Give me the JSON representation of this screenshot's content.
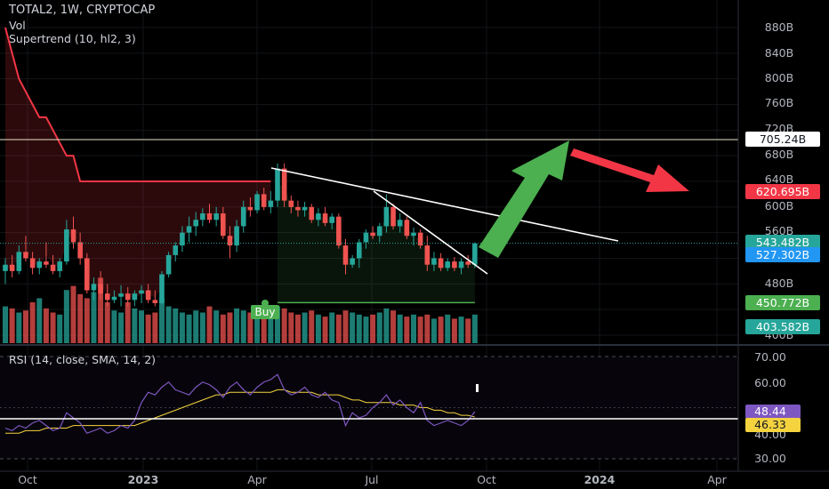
{
  "legend": {
    "title": "TOTAL2, 1W, CRYPTOCAP",
    "vol": "Vol",
    "supertrend": "Supertrend (10, hl2, 3)",
    "rsi": "RSI (14, close, SMA, 14, 2)"
  },
  "price_axis": {
    "ticks": [
      "880B",
      "840B",
      "800B",
      "760B",
      "720B",
      "680B",
      "640B",
      "600B",
      "560B",
      "480B",
      "400B"
    ]
  },
  "rsi_axis": {
    "ticks": [
      "70.00",
      "60.00",
      "40.00",
      "30.00"
    ]
  },
  "badges": {
    "hline": "705.24B",
    "supertrend": "620.695B",
    "last_price": "543.482B",
    "ema": "527.302B",
    "buy_level": "450.772B",
    "volume": "403.582B",
    "rsi": "48.44",
    "rsi_sma": "46.33"
  },
  "signal": {
    "buy": "Buy"
  },
  "time_axis": [
    "Oct",
    "2023",
    "Apr",
    "Jul",
    "Oct",
    "2024",
    "Apr"
  ],
  "colors": {
    "up": "#26a69a",
    "down": "#ef5350",
    "supertrend_down": "#f23645",
    "supertrend_up": "#4caf50",
    "rsi": "#7e57c2",
    "rsi_sma": "#f5d33f",
    "arrow_up": "#4caf50",
    "arrow_down": "#f23645"
  },
  "chart_data": {
    "type": "candlestick",
    "candles": [
      {
        "o": 500,
        "h": 520,
        "l": 480,
        "c": 510
      },
      {
        "o": 510,
        "h": 525,
        "l": 490,
        "c": 500
      },
      {
        "o": 500,
        "h": 540,
        "l": 495,
        "c": 530
      },
      {
        "o": 530,
        "h": 555,
        "l": 515,
        "c": 520
      },
      {
        "o": 520,
        "h": 530,
        "l": 495,
        "c": 505
      },
      {
        "o": 505,
        "h": 520,
        "l": 495,
        "c": 515
      },
      {
        "o": 515,
        "h": 545,
        "l": 505,
        "c": 510
      },
      {
        "o": 510,
        "h": 525,
        "l": 495,
        "c": 500
      },
      {
        "o": 500,
        "h": 520,
        "l": 490,
        "c": 515
      },
      {
        "o": 515,
        "h": 580,
        "l": 510,
        "c": 565
      },
      {
        "o": 565,
        "h": 585,
        "l": 535,
        "c": 545
      },
      {
        "o": 545,
        "h": 560,
        "l": 510,
        "c": 520
      },
      {
        "o": 520,
        "h": 528,
        "l": 465,
        "c": 470
      },
      {
        "o": 470,
        "h": 490,
        "l": 455,
        "c": 480
      },
      {
        "o": 480,
        "h": 500,
        "l": 455,
        "c": 465
      },
      {
        "o": 465,
        "h": 480,
        "l": 445,
        "c": 455
      },
      {
        "o": 455,
        "h": 470,
        "l": 450,
        "c": 460
      },
      {
        "o": 460,
        "h": 478,
        "l": 445,
        "c": 465
      },
      {
        "o": 465,
        "h": 475,
        "l": 445,
        "c": 455
      },
      {
        "o": 455,
        "h": 470,
        "l": 445,
        "c": 465
      },
      {
        "o": 465,
        "h": 478,
        "l": 450,
        "c": 470
      },
      {
        "o": 470,
        "h": 480,
        "l": 450,
        "c": 455
      },
      {
        "o": 455,
        "h": 470,
        "l": 445,
        "c": 450
      },
      {
        "o": 450,
        "h": 500,
        "l": 448,
        "c": 495
      },
      {
        "o": 495,
        "h": 530,
        "l": 490,
        "c": 525
      },
      {
        "o": 525,
        "h": 545,
        "l": 515,
        "c": 540
      },
      {
        "o": 540,
        "h": 570,
        "l": 530,
        "c": 560
      },
      {
        "o": 560,
        "h": 585,
        "l": 545,
        "c": 570
      },
      {
        "o": 570,
        "h": 592,
        "l": 555,
        "c": 580
      },
      {
        "o": 580,
        "h": 598,
        "l": 570,
        "c": 590
      },
      {
        "o": 590,
        "h": 605,
        "l": 575,
        "c": 580
      },
      {
        "o": 580,
        "h": 600,
        "l": 570,
        "c": 590
      },
      {
        "o": 590,
        "h": 600,
        "l": 550,
        "c": 555
      },
      {
        "o": 555,
        "h": 570,
        "l": 520,
        "c": 540
      },
      {
        "o": 540,
        "h": 580,
        "l": 530,
        "c": 570
      },
      {
        "o": 570,
        "h": 610,
        "l": 560,
        "c": 600
      },
      {
        "o": 600,
        "h": 615,
        "l": 585,
        "c": 595
      },
      {
        "o": 595,
        "h": 625,
        "l": 590,
        "c": 620
      },
      {
        "o": 620,
        "h": 630,
        "l": 595,
        "c": 600
      },
      {
        "o": 600,
        "h": 625,
        "l": 590,
        "c": 610
      },
      {
        "o": 610,
        "h": 668,
        "l": 600,
        "c": 660
      },
      {
        "o": 660,
        "h": 668,
        "l": 600,
        "c": 610
      },
      {
        "o": 610,
        "h": 618,
        "l": 590,
        "c": 600
      },
      {
        "o": 600,
        "h": 610,
        "l": 585,
        "c": 595
      },
      {
        "o": 595,
        "h": 608,
        "l": 585,
        "c": 600
      },
      {
        "o": 600,
        "h": 605,
        "l": 575,
        "c": 580
      },
      {
        "o": 580,
        "h": 598,
        "l": 570,
        "c": 590
      },
      {
        "o": 590,
        "h": 600,
        "l": 570,
        "c": 575
      },
      {
        "o": 575,
        "h": 590,
        "l": 565,
        "c": 585
      },
      {
        "o": 585,
        "h": 590,
        "l": 535,
        "c": 540
      },
      {
        "o": 540,
        "h": 550,
        "l": 495,
        "c": 510
      },
      {
        "o": 510,
        "h": 525,
        "l": 505,
        "c": 520
      },
      {
        "o": 520,
        "h": 550,
        "l": 505,
        "c": 545
      },
      {
        "o": 545,
        "h": 565,
        "l": 535,
        "c": 560
      },
      {
        "o": 560,
        "h": 570,
        "l": 550,
        "c": 555
      },
      {
        "o": 555,
        "h": 575,
        "l": 545,
        "c": 570
      },
      {
        "o": 570,
        "h": 620,
        "l": 560,
        "c": 600
      },
      {
        "o": 600,
        "h": 605,
        "l": 565,
        "c": 570
      },
      {
        "o": 570,
        "h": 590,
        "l": 560,
        "c": 580
      },
      {
        "o": 580,
        "h": 585,
        "l": 550,
        "c": 555
      },
      {
        "o": 555,
        "h": 568,
        "l": 540,
        "c": 560
      },
      {
        "o": 560,
        "h": 565,
        "l": 535,
        "c": 540
      },
      {
        "o": 540,
        "h": 555,
        "l": 500,
        "c": 510
      },
      {
        "o": 510,
        "h": 530,
        "l": 500,
        "c": 520
      },
      {
        "o": 520,
        "h": 528,
        "l": 500,
        "c": 505
      },
      {
        "o": 505,
        "h": 520,
        "l": 500,
        "c": 515
      },
      {
        "o": 515,
        "h": 522,
        "l": 500,
        "c": 505
      },
      {
        "o": 505,
        "h": 520,
        "l": 495,
        "c": 515
      },
      {
        "o": 515,
        "h": 525,
        "l": 505,
        "c": 510
      },
      {
        "o": 510,
        "h": 545,
        "l": 505,
        "c": 543
      }
    ],
    "volume": [
      18,
      17,
      15,
      16,
      20,
      22,
      17,
      15,
      14,
      26,
      28,
      24,
      22,
      25,
      32,
      20,
      16,
      15,
      20,
      17,
      16,
      14,
      15,
      22,
      18,
      17,
      15,
      14,
      16,
      15,
      18,
      16,
      14,
      15,
      17,
      16,
      15,
      14,
      15,
      16,
      18,
      17,
      15,
      14,
      15,
      16,
      14,
      13,
      15,
      14,
      16,
      15,
      14,
      13,
      14,
      15,
      17,
      16,
      14,
      13,
      14,
      13,
      14,
      12,
      13,
      14,
      12,
      13,
      12,
      14
    ],
    "supertrend": [
      880,
      840,
      800,
      780,
      760,
      740,
      740,
      720,
      700,
      680,
      680,
      640,
      640,
      640,
      640,
      640,
      640,
      640,
      640,
      640,
      640,
      640,
      640,
      640,
      640,
      640,
      640,
      640,
      640,
      640,
      640,
      640,
      640,
      640,
      640,
      640,
      640,
      640,
      640,
      640,
      450.772,
      450.772,
      450.772,
      450.772,
      450.772,
      450.772,
      450.772,
      450.772,
      450.772,
      450.772,
      450.772,
      450.772,
      450.772,
      450.772,
      450.772,
      450.772,
      450.772,
      450.772,
      450.772,
      450.772,
      450.772,
      450.772,
      450.772,
      450.772,
      450.772,
      450.772,
      450.772,
      450.772,
      450.772,
      450.772
    ],
    "supertrend_start": 0,
    "hline": 705.24,
    "last_price": 543.482,
    "ema": 527.302,
    "buy_level": 450.772,
    "buy_index": 40,
    "rsi": [
      42,
      41,
      43,
      42,
      44,
      45,
      43,
      41,
      42,
      48,
      46,
      44,
      40,
      41,
      42,
      40,
      41,
      43,
      42,
      45,
      52,
      56,
      55,
      58,
      60,
      57,
      56,
      55,
      58,
      60,
      59,
      57,
      54,
      58,
      60,
      57,
      55,
      58,
      60,
      61,
      63,
      57,
      55,
      56,
      58,
      55,
      54,
      56,
      53,
      52,
      43,
      48,
      46,
      47,
      50,
      52,
      55,
      51,
      53,
      50,
      48,
      52,
      45,
      43,
      44,
      45,
      44,
      43,
      45,
      48.44
    ],
    "rsi_sma": [
      40,
      40,
      40,
      41,
      41,
      41,
      42,
      42,
      42,
      42,
      43,
      43,
      43,
      43,
      43,
      43,
      43,
      43,
      43,
      43,
      44,
      45,
      46,
      47,
      48,
      49,
      50,
      51,
      52,
      53,
      54,
      55,
      55,
      56,
      56,
      56,
      56,
      56,
      56,
      56,
      57,
      57,
      56,
      56,
      56,
      56,
      55,
      55,
      55,
      55,
      54,
      53,
      53,
      52,
      52,
      52,
      52,
      52,
      51,
      51,
      51,
      50,
      50,
      49,
      49,
      48,
      48,
      47,
      47,
      46.33
    ],
    "rsi_levels": [
      70,
      60,
      40,
      30
    ]
  }
}
